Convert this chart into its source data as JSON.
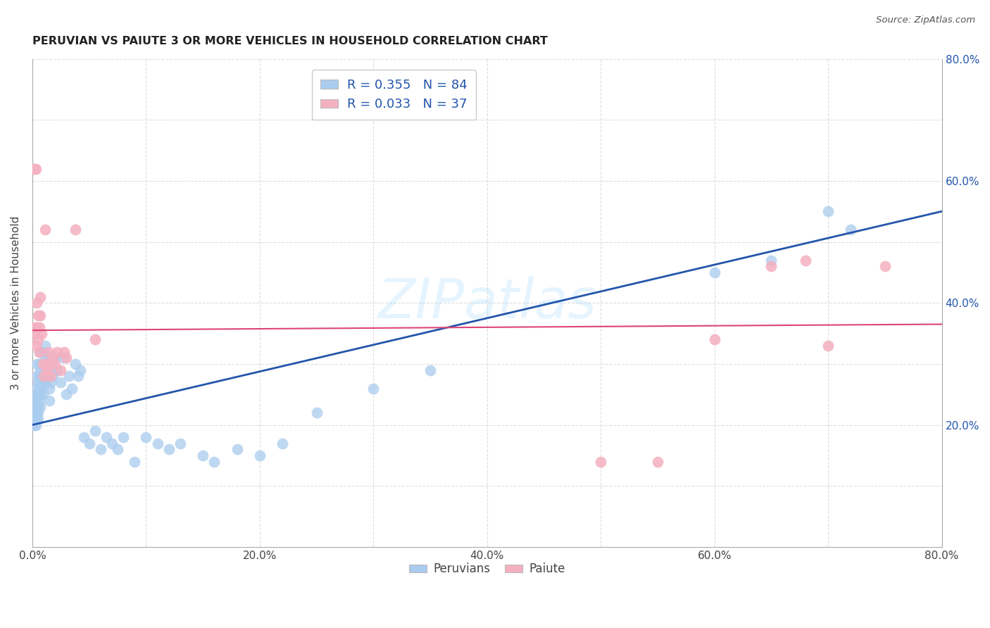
{
  "title": "PERUVIAN VS PAIUTE 3 OR MORE VEHICLES IN HOUSEHOLD CORRELATION CHART",
  "source_text": "Source: ZipAtlas.com",
  "ylabel": "3 or more Vehicles in Household",
  "xlim": [
    0.0,
    0.8
  ],
  "ylim": [
    0.0,
    0.8
  ],
  "grid_color": "#dddddd",
  "peruvian_color": "#aaccee",
  "paiute_color": "#f4b0c0",
  "peruvian_line_color": "#2255aa",
  "paiute_line_color": "#dd4477",
  "R_peruvian": 0.355,
  "N_peruvian": 84,
  "R_paiute": 0.033,
  "N_paiute": 37,
  "watermark": "ZIPatlas",
  "legend_labels": [
    "Peruvians",
    "Paiute"
  ],
  "peruvian_points": [
    [
      0.001,
      0.22
    ],
    [
      0.001,
      0.24
    ],
    [
      0.002,
      0.21
    ],
    [
      0.002,
      0.22
    ],
    [
      0.002,
      0.23
    ],
    [
      0.002,
      0.2
    ],
    [
      0.003,
      0.22
    ],
    [
      0.003,
      0.25
    ],
    [
      0.003,
      0.23
    ],
    [
      0.003,
      0.21
    ],
    [
      0.003,
      0.2
    ],
    [
      0.004,
      0.24
    ],
    [
      0.004,
      0.22
    ],
    [
      0.004,
      0.26
    ],
    [
      0.004,
      0.28
    ],
    [
      0.004,
      0.3
    ],
    [
      0.005,
      0.25
    ],
    [
      0.005,
      0.27
    ],
    [
      0.005,
      0.23
    ],
    [
      0.005,
      0.22
    ],
    [
      0.005,
      0.21
    ],
    [
      0.006,
      0.26
    ],
    [
      0.006,
      0.28
    ],
    [
      0.006,
      0.3
    ],
    [
      0.006,
      0.32
    ],
    [
      0.006,
      0.24
    ],
    [
      0.007,
      0.27
    ],
    [
      0.007,
      0.29
    ],
    [
      0.007,
      0.25
    ],
    [
      0.007,
      0.23
    ],
    [
      0.008,
      0.28
    ],
    [
      0.008,
      0.3
    ],
    [
      0.008,
      0.26
    ],
    [
      0.009,
      0.27
    ],
    [
      0.009,
      0.25
    ],
    [
      0.01,
      0.3
    ],
    [
      0.01,
      0.28
    ],
    [
      0.01,
      0.32
    ],
    [
      0.011,
      0.33
    ],
    [
      0.011,
      0.31
    ],
    [
      0.012,
      0.29
    ],
    [
      0.012,
      0.27
    ],
    [
      0.013,
      0.3
    ],
    [
      0.013,
      0.28
    ],
    [
      0.014,
      0.31
    ],
    [
      0.015,
      0.26
    ],
    [
      0.015,
      0.24
    ],
    [
      0.016,
      0.29
    ],
    [
      0.016,
      0.27
    ],
    [
      0.017,
      0.3
    ],
    [
      0.018,
      0.28
    ],
    [
      0.02,
      0.31
    ],
    [
      0.022,
      0.29
    ],
    [
      0.025,
      0.27
    ],
    [
      0.027,
      0.31
    ],
    [
      0.03,
      0.25
    ],
    [
      0.032,
      0.28
    ],
    [
      0.035,
      0.26
    ],
    [
      0.038,
      0.3
    ],
    [
      0.04,
      0.28
    ],
    [
      0.042,
      0.29
    ],
    [
      0.045,
      0.18
    ],
    [
      0.05,
      0.17
    ],
    [
      0.055,
      0.19
    ],
    [
      0.06,
      0.16
    ],
    [
      0.065,
      0.18
    ],
    [
      0.07,
      0.17
    ],
    [
      0.075,
      0.16
    ],
    [
      0.08,
      0.18
    ],
    [
      0.09,
      0.14
    ],
    [
      0.1,
      0.18
    ],
    [
      0.11,
      0.17
    ],
    [
      0.12,
      0.16
    ],
    [
      0.13,
      0.17
    ],
    [
      0.15,
      0.15
    ],
    [
      0.16,
      0.14
    ],
    [
      0.18,
      0.16
    ],
    [
      0.2,
      0.15
    ],
    [
      0.22,
      0.17
    ],
    [
      0.25,
      0.22
    ],
    [
      0.3,
      0.26
    ],
    [
      0.35,
      0.29
    ],
    [
      0.6,
      0.45
    ],
    [
      0.65,
      0.47
    ],
    [
      0.7,
      0.55
    ],
    [
      0.72,
      0.52
    ]
  ],
  "paiute_points": [
    [
      0.001,
      0.36
    ],
    [
      0.002,
      0.62
    ],
    [
      0.002,
      0.35
    ],
    [
      0.003,
      0.33
    ],
    [
      0.003,
      0.62
    ],
    [
      0.004,
      0.4
    ],
    [
      0.004,
      0.36
    ],
    [
      0.005,
      0.38
    ],
    [
      0.005,
      0.34
    ],
    [
      0.006,
      0.36
    ],
    [
      0.006,
      0.32
    ],
    [
      0.007,
      0.38
    ],
    [
      0.007,
      0.41
    ],
    [
      0.008,
      0.35
    ],
    [
      0.009,
      0.3
    ],
    [
      0.01,
      0.28
    ],
    [
      0.011,
      0.52
    ],
    [
      0.012,
      0.3
    ],
    [
      0.013,
      0.29
    ],
    [
      0.014,
      0.32
    ],
    [
      0.015,
      0.3
    ],
    [
      0.016,
      0.28
    ],
    [
      0.018,
      0.31
    ],
    [
      0.02,
      0.3
    ],
    [
      0.022,
      0.32
    ],
    [
      0.025,
      0.29
    ],
    [
      0.028,
      0.32
    ],
    [
      0.03,
      0.31
    ],
    [
      0.038,
      0.52
    ],
    [
      0.055,
      0.34
    ],
    [
      0.5,
      0.14
    ],
    [
      0.55,
      0.14
    ],
    [
      0.6,
      0.34
    ],
    [
      0.65,
      0.46
    ],
    [
      0.68,
      0.47
    ],
    [
      0.7,
      0.33
    ],
    [
      0.75,
      0.46
    ]
  ]
}
